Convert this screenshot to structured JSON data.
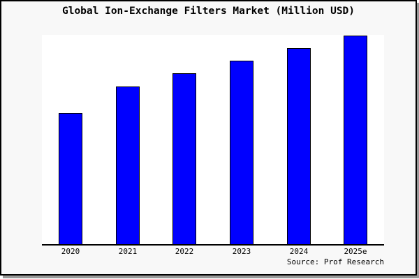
{
  "figure": {
    "colors": {
      "bar_fill": "#0000ff",
      "bar_edge": "#000000",
      "figure_bg": "#f8f8f8",
      "plot_bg": "#ffffff",
      "frame_border": "#000000",
      "shadow": "#999999",
      "text": "#000000"
    }
  },
  "chart_data": {
    "type": "bar",
    "title": "Global Ion-Exchange Filters Market (Million USD)",
    "categories": [
      "2020",
      "2021",
      "2022",
      "2023",
      "2024",
      "2025e"
    ],
    "values": [
      62.7,
      75.3,
      81.8,
      87.8,
      93.8,
      99.8
    ],
    "xlabel": "",
    "ylabel": "",
    "ylim": [
      0,
      100
    ],
    "y_axis_visible": false,
    "grid": false,
    "legend": null,
    "source": "Source: Prof Research"
  }
}
